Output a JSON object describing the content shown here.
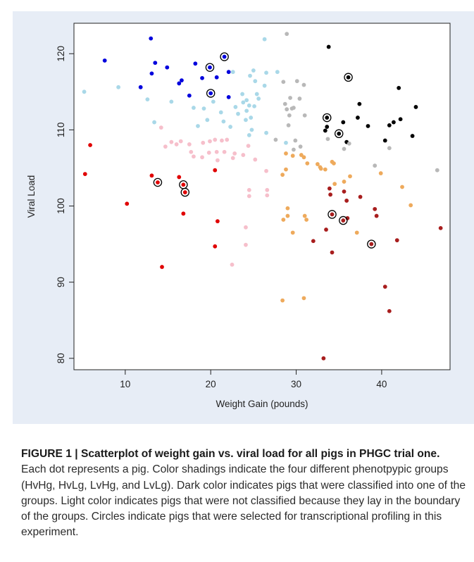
{
  "caption": {
    "title": "FIGURE 1 | Scatterplot of weight gain vs. viral load for all pigs in PHGC trial one.",
    "body": "Each dot represents a pig. Color shadings indicate the four different phenotpypic groups (HvHg, HvLg, LvHg, and LvLg). Dark color indicates pigs that were classified into one of the groups. Light color indicates pigs that were not classified because they lay in the boundary of the groups. Circles indicate pigs that were selected for transcriptional profiling in this experiment."
  },
  "chart_data": {
    "type": "scatter",
    "title": "",
    "xlabel": "Weight Gain (pounds)",
    "ylabel": "Viral Load",
    "xlim": [
      4,
      48
    ],
    "ylim": [
      78.5,
      124
    ],
    "xticks": [
      10,
      20,
      30,
      40
    ],
    "yticks": [
      80,
      90,
      100,
      110,
      120
    ],
    "grid": false,
    "legend": "none",
    "colors": {
      "blue": "#0000dd",
      "lightblue": "#a9d8e8",
      "black": "#000000",
      "gray": "#b8b8b8",
      "red": "#e00000",
      "pink": "#f6bfcb",
      "darkred": "#a81e1e",
      "orange": "#eeaa5c"
    },
    "series": [
      {
        "color_key": "blue",
        "points": [
          [
            7.6,
            119.1
          ],
          [
            11.8,
            115.6
          ],
          [
            13,
            122
          ],
          [
            13.1,
            117.4
          ],
          [
            13.5,
            118.8
          ],
          [
            14.9,
            118.2
          ],
          [
            16.3,
            116.1
          ],
          [
            16.6,
            116.5
          ],
          [
            17.5,
            114.5
          ],
          [
            18.2,
            118.7
          ],
          [
            19,
            116.8
          ],
          [
            19.9,
            118.2
          ],
          [
            20,
            114.8
          ],
          [
            20.7,
            116.9
          ],
          [
            21.6,
            119.6
          ],
          [
            22.1,
            114.3
          ],
          [
            22.1,
            117.6
          ]
        ]
      },
      {
        "color_key": "lightblue",
        "points": [
          [
            5.2,
            115
          ],
          [
            9.2,
            115.6
          ],
          [
            12.6,
            114
          ],
          [
            13.4,
            111
          ],
          [
            15.4,
            113.7
          ],
          [
            18,
            112.9
          ],
          [
            18.5,
            110.5
          ],
          [
            19.2,
            112.8
          ],
          [
            19.6,
            111.3
          ],
          [
            20.3,
            113.7
          ],
          [
            21.2,
            112.3
          ],
          [
            21.5,
            111.1
          ],
          [
            22.3,
            110.4
          ],
          [
            22.6,
            117.6
          ],
          [
            22.9,
            113
          ],
          [
            23.2,
            112.1
          ],
          [
            23.7,
            114.7
          ],
          [
            23.8,
            113.6
          ],
          [
            24.1,
            111.3
          ],
          [
            24.2,
            113.9
          ],
          [
            24.2,
            112.5
          ],
          [
            24.5,
            113.2
          ],
          [
            24.6,
            117.1
          ],
          [
            24.7,
            111.6
          ],
          [
            24.5,
            109.3
          ],
          [
            24.8,
            110
          ],
          [
            25,
            117.8
          ],
          [
            25.1,
            113.1
          ],
          [
            25.2,
            116.4
          ],
          [
            25.4,
            114.7
          ],
          [
            25.6,
            114.1
          ],
          [
            26.3,
            115.8
          ],
          [
            26.3,
            121.9
          ],
          [
            26.5,
            117.5
          ],
          [
            26.5,
            109.6
          ],
          [
            27.8,
            117.6
          ],
          [
            28.8,
            108.3
          ]
        ]
      },
      {
        "color_key": "black",
        "points": [
          [
            33.6,
            111.6
          ],
          [
            33.6,
            110.4
          ],
          [
            33.4,
            109.9
          ],
          [
            33.8,
            120.9
          ],
          [
            35,
            109.5
          ],
          [
            35.5,
            111
          ],
          [
            35.9,
            108.4
          ],
          [
            36.1,
            116.9
          ],
          [
            37.4,
            113.4
          ],
          [
            37.2,
            111.6
          ],
          [
            38.4,
            110.5
          ],
          [
            40.4,
            108.6
          ],
          [
            40.9,
            110.6
          ],
          [
            41.4,
            111
          ],
          [
            42,
            115.5
          ],
          [
            42.2,
            111.4
          ],
          [
            43.6,
            109.2
          ],
          [
            44,
            113
          ]
        ]
      },
      {
        "color_key": "gray",
        "points": [
          [
            27.6,
            108.7
          ],
          [
            28.5,
            116.3
          ],
          [
            28.7,
            113.4
          ],
          [
            28.9,
            122.6
          ],
          [
            28.9,
            112.7
          ],
          [
            29.1,
            110.6
          ],
          [
            29.2,
            111.9
          ],
          [
            29.3,
            114.2
          ],
          [
            29.5,
            112.8
          ],
          [
            29.7,
            112.9
          ],
          [
            29.7,
            107.4
          ],
          [
            29.9,
            108.6
          ],
          [
            30.1,
            116.4
          ],
          [
            30.4,
            114.1
          ],
          [
            30.9,
            115.9
          ],
          [
            31,
            111.9
          ],
          [
            30.5,
            107.8
          ],
          [
            33.7,
            108.8
          ],
          [
            35.6,
            107.5
          ],
          [
            36.2,
            108.2
          ],
          [
            39.2,
            105.3
          ],
          [
            40.9,
            107.6
          ],
          [
            46.5,
            104.7
          ]
        ]
      },
      {
        "color_key": "red",
        "points": [
          [
            5.3,
            104.2
          ],
          [
            5.9,
            108
          ],
          [
            10.2,
            100.3
          ],
          [
            13.1,
            104
          ],
          [
            13.8,
            103.1
          ],
          [
            14.3,
            92
          ],
          [
            16.3,
            103.8
          ],
          [
            16.8,
            102.8
          ],
          [
            16.8,
            99
          ],
          [
            17,
            101.8
          ],
          [
            20.5,
            104.7
          ],
          [
            20.5,
            94.7
          ],
          [
            20.8,
            98
          ]
        ]
      },
      {
        "color_key": "pink",
        "points": [
          [
            14.2,
            110.3
          ],
          [
            14.7,
            107.8
          ],
          [
            15.4,
            108.4
          ],
          [
            16,
            108.1
          ],
          [
            16.5,
            108.5
          ],
          [
            17.5,
            108.1
          ],
          [
            17.7,
            107.1
          ],
          [
            18,
            106.5
          ],
          [
            19,
            106.4
          ],
          [
            19.1,
            108.3
          ],
          [
            19.8,
            107
          ],
          [
            19.9,
            108.5
          ],
          [
            20.5,
            108.7
          ],
          [
            20.7,
            107.1
          ],
          [
            20.8,
            106
          ],
          [
            21.3,
            108.6
          ],
          [
            21.6,
            107.1
          ],
          [
            21.9,
            108.7
          ],
          [
            22.6,
            106.3
          ],
          [
            22.8,
            106.9
          ],
          [
            23.8,
            106.7
          ],
          [
            24.1,
            97.2
          ],
          [
            24.1,
            94.9
          ],
          [
            24.4,
            107.9
          ],
          [
            24.5,
            102.1
          ],
          [
            24.5,
            101.3
          ],
          [
            25.2,
            106.1
          ],
          [
            26.5,
            104.6
          ],
          [
            26.6,
            102.1
          ],
          [
            26.6,
            101.4
          ],
          [
            22.5,
            92.3
          ]
        ]
      },
      {
        "color_key": "darkred",
        "points": [
          [
            32,
            95.4
          ],
          [
            33.2,
            80
          ],
          [
            33.5,
            96.9
          ],
          [
            33.9,
            102.3
          ],
          [
            34,
            101.5
          ],
          [
            34.2,
            93.9
          ],
          [
            34.2,
            98.9
          ],
          [
            35.5,
            98.1
          ],
          [
            35.6,
            101.9
          ],
          [
            35.9,
            100.7
          ],
          [
            36,
            98.4
          ],
          [
            37.5,
            101.2
          ],
          [
            38.8,
            95
          ],
          [
            39.2,
            99.6
          ],
          [
            39.4,
            98.7
          ],
          [
            40.4,
            89.4
          ],
          [
            40.9,
            86.2
          ],
          [
            41.8,
            95.5
          ],
          [
            46.9,
            97.1
          ]
        ]
      },
      {
        "color_key": "orange",
        "points": [
          [
            28.4,
            87.6
          ],
          [
            28.4,
            104.1
          ],
          [
            28.5,
            98.2
          ],
          [
            28.8,
            106.9
          ],
          [
            28.8,
            104.8
          ],
          [
            29,
            99.7
          ],
          [
            29,
            98.7
          ],
          [
            29.6,
            106.6
          ],
          [
            29.6,
            96.5
          ],
          [
            30.6,
            106.7
          ],
          [
            30.9,
            106.4
          ],
          [
            30.9,
            87.9
          ],
          [
            31,
            98.7
          ],
          [
            31.2,
            98.2
          ],
          [
            31.3,
            105.6
          ],
          [
            32.5,
            105.5
          ],
          [
            32.8,
            105.1
          ],
          [
            32.9,
            104.9
          ],
          [
            33.4,
            104.8
          ],
          [
            34.2,
            105.8
          ],
          [
            34.4,
            105.6
          ],
          [
            34.5,
            102.9
          ],
          [
            35.6,
            103.2
          ],
          [
            36.3,
            103.9
          ],
          [
            37.1,
            96.5
          ],
          [
            39.9,
            104.3
          ],
          [
            42.4,
            102.5
          ],
          [
            43.4,
            100.1
          ]
        ]
      }
    ],
    "circled": [
      [
        13.8,
        103.1
      ],
      [
        16.8,
        102.8
      ],
      [
        17,
        101.8
      ],
      [
        19.9,
        118.2
      ],
      [
        20,
        114.8
      ],
      [
        21.6,
        119.6
      ],
      [
        33.6,
        111.6
      ],
      [
        35,
        109.5
      ],
      [
        36.1,
        116.9
      ],
      [
        34.2,
        98.9
      ],
      [
        35.5,
        98.1
      ],
      [
        38.8,
        95
      ]
    ]
  }
}
